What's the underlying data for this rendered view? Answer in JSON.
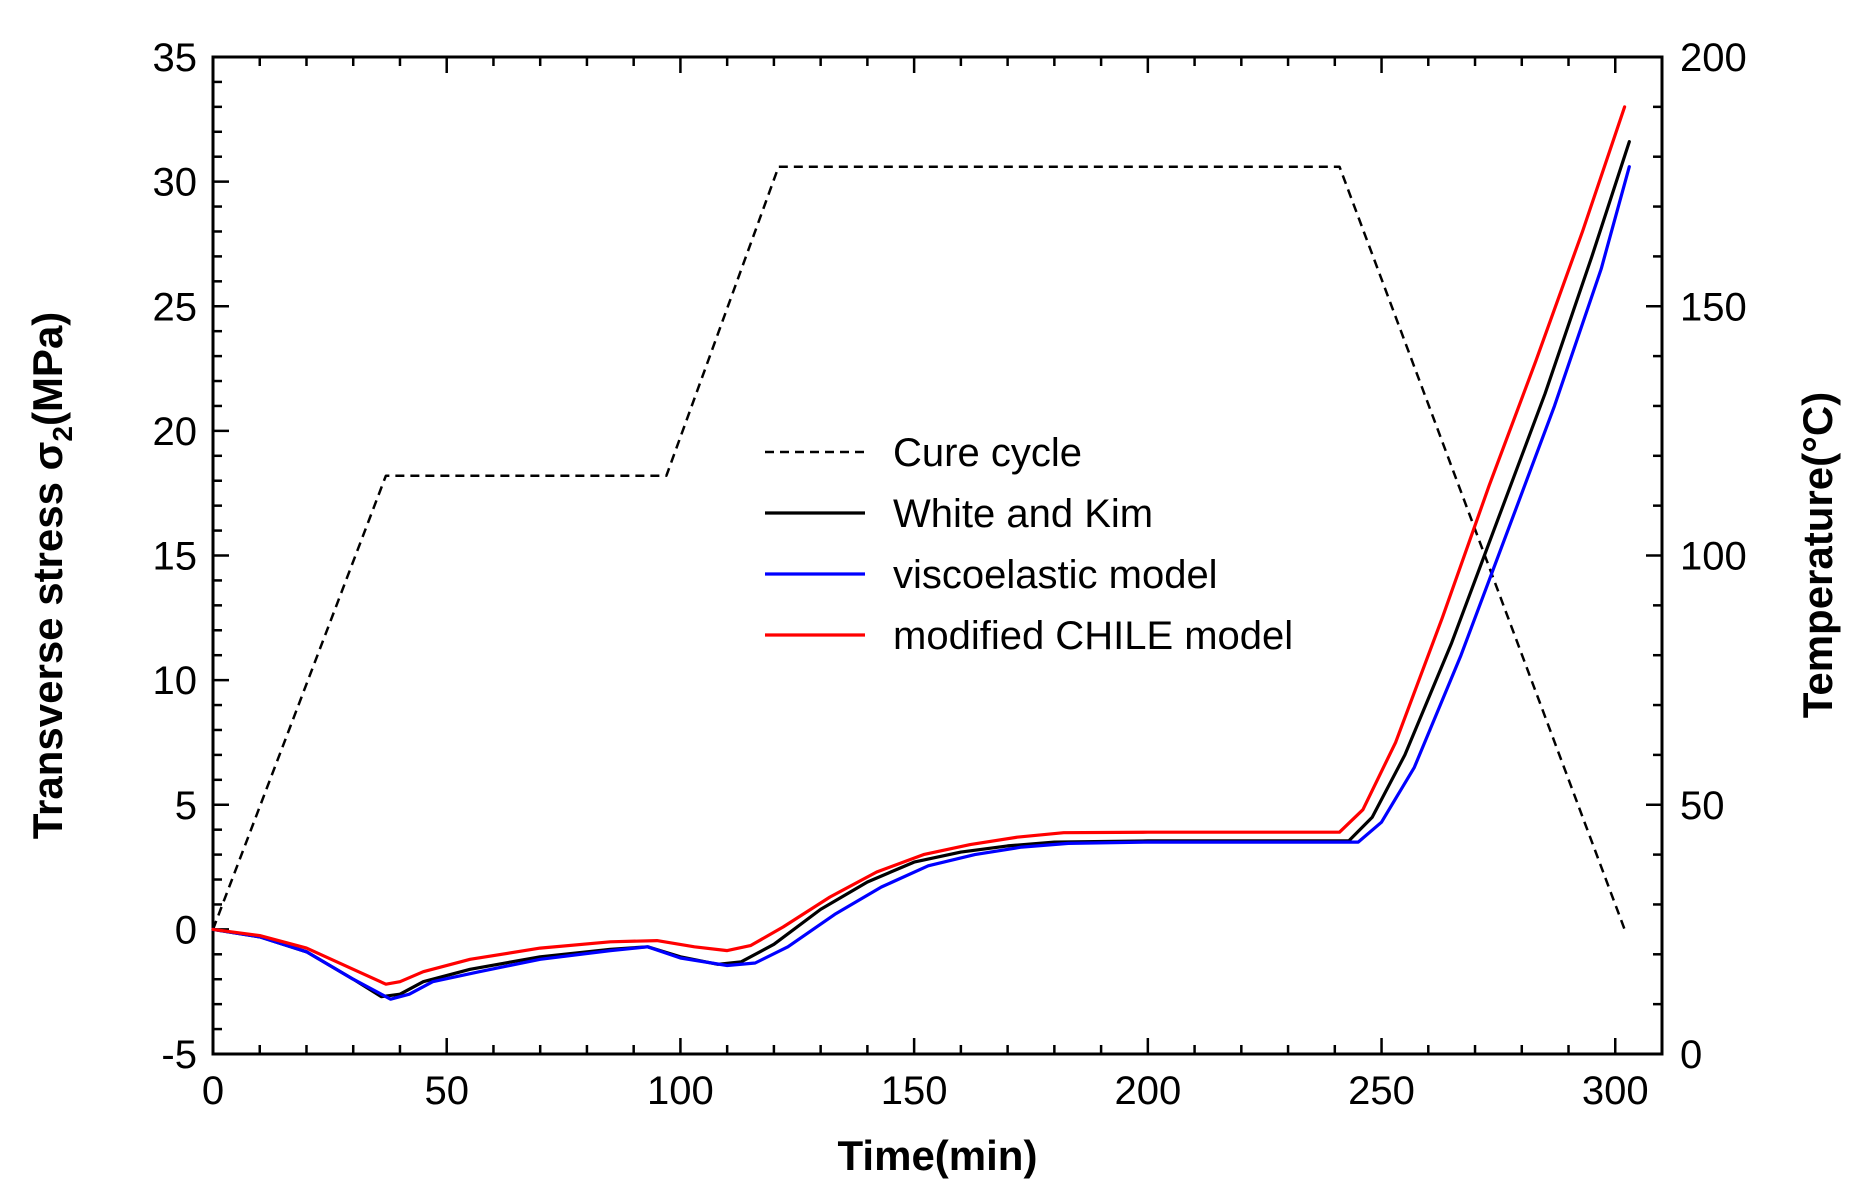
{
  "chart_data": {
    "type": "line",
    "xlabel": "Time(min)",
    "ylabel": "Transverse stress σ",
    "ylabel_subscript": "2",
    "ylabel_suffix": "(MPa)",
    "y2label": "Temperature(°C)",
    "xlim": [
      0,
      310
    ],
    "ylim": [
      -5,
      35
    ],
    "y2lim": [
      0,
      200
    ],
    "xticks": [
      0,
      50,
      100,
      150,
      200,
      250,
      300
    ],
    "yticks": [
      -5,
      0,
      5,
      10,
      15,
      20,
      25,
      30,
      35
    ],
    "y2ticks": [
      0,
      50,
      100,
      150,
      200
    ],
    "x_minor_step": 10,
    "y_minor_step": 1,
    "y2_minor_step": 10,
    "grid": false,
    "legend_position": "center",
    "series": [
      {
        "name": "Cure cycle",
        "axis": "right",
        "color": "#000000",
        "dash": "dotted",
        "points": [
          [
            0,
            25
          ],
          [
            37,
            116
          ],
          [
            97,
            116
          ],
          [
            121,
            178
          ],
          [
            241,
            178
          ],
          [
            302,
            25
          ]
        ]
      },
      {
        "name": "White and Kim",
        "axis": "left",
        "color": "#000000",
        "dash": "solid",
        "points": [
          [
            0,
            0
          ],
          [
            10,
            -0.3
          ],
          [
            20,
            -0.9
          ],
          [
            30,
            -2
          ],
          [
            36,
            -2.7
          ],
          [
            40,
            -2.6
          ],
          [
            45,
            -2.1
          ],
          [
            55,
            -1.6
          ],
          [
            70,
            -1.1
          ],
          [
            85,
            -0.8
          ],
          [
            93,
            -0.7
          ],
          [
            100,
            -1.1
          ],
          [
            108,
            -1.4
          ],
          [
            113,
            -1.3
          ],
          [
            120,
            -0.6
          ],
          [
            130,
            0.8
          ],
          [
            140,
            1.9
          ],
          [
            150,
            2.7
          ],
          [
            160,
            3.1
          ],
          [
            170,
            3.35
          ],
          [
            180,
            3.5
          ],
          [
            200,
            3.55
          ],
          [
            220,
            3.55
          ],
          [
            243,
            3.55
          ],
          [
            248,
            4.5
          ],
          [
            255,
            7
          ],
          [
            265,
            11.5
          ],
          [
            275,
            16.5
          ],
          [
            285,
            21.5
          ],
          [
            295,
            27
          ],
          [
            303,
            31.6
          ]
        ]
      },
      {
        "name": "viscoelastic model",
        "axis": "left",
        "color": "#0000ff",
        "dash": "solid",
        "points": [
          [
            0,
            0
          ],
          [
            10,
            -0.3
          ],
          [
            20,
            -0.9
          ],
          [
            30,
            -2
          ],
          [
            38,
            -2.8
          ],
          [
            42,
            -2.6
          ],
          [
            47,
            -2.1
          ],
          [
            57,
            -1.7
          ],
          [
            70,
            -1.2
          ],
          [
            85,
            -0.85
          ],
          [
            93,
            -0.7
          ],
          [
            100,
            -1.15
          ],
          [
            110,
            -1.45
          ],
          [
            116,
            -1.35
          ],
          [
            123,
            -0.7
          ],
          [
            133,
            0.6
          ],
          [
            143,
            1.7
          ],
          [
            153,
            2.55
          ],
          [
            163,
            3.0
          ],
          [
            173,
            3.3
          ],
          [
            183,
            3.45
          ],
          [
            200,
            3.5
          ],
          [
            220,
            3.5
          ],
          [
            245,
            3.5
          ],
          [
            250,
            4.3
          ],
          [
            257,
            6.5
          ],
          [
            267,
            11
          ],
          [
            277,
            16
          ],
          [
            287,
            21
          ],
          [
            297,
            26.5
          ],
          [
            303,
            30.6
          ]
        ]
      },
      {
        "name": "modified CHILE model",
        "axis": "left",
        "color": "#ff0000",
        "dash": "solid",
        "points": [
          [
            0,
            0
          ],
          [
            10,
            -0.25
          ],
          [
            20,
            -0.75
          ],
          [
            30,
            -1.6
          ],
          [
            37,
            -2.2
          ],
          [
            40,
            -2.1
          ],
          [
            45,
            -1.7
          ],
          [
            55,
            -1.2
          ],
          [
            70,
            -0.75
          ],
          [
            85,
            -0.5
          ],
          [
            95,
            -0.45
          ],
          [
            103,
            -0.7
          ],
          [
            110,
            -0.85
          ],
          [
            115,
            -0.65
          ],
          [
            122,
            0.1
          ],
          [
            132,
            1.3
          ],
          [
            142,
            2.3
          ],
          [
            152,
            3.0
          ],
          [
            162,
            3.4
          ],
          [
            172,
            3.7
          ],
          [
            182,
            3.88
          ],
          [
            200,
            3.9
          ],
          [
            220,
            3.9
          ],
          [
            241,
            3.9
          ],
          [
            246,
            4.8
          ],
          [
            253,
            7.5
          ],
          [
            263,
            12.5
          ],
          [
            273,
            17.8
          ],
          [
            283,
            22.8
          ],
          [
            293,
            28
          ],
          [
            302,
            33
          ]
        ]
      }
    ]
  }
}
